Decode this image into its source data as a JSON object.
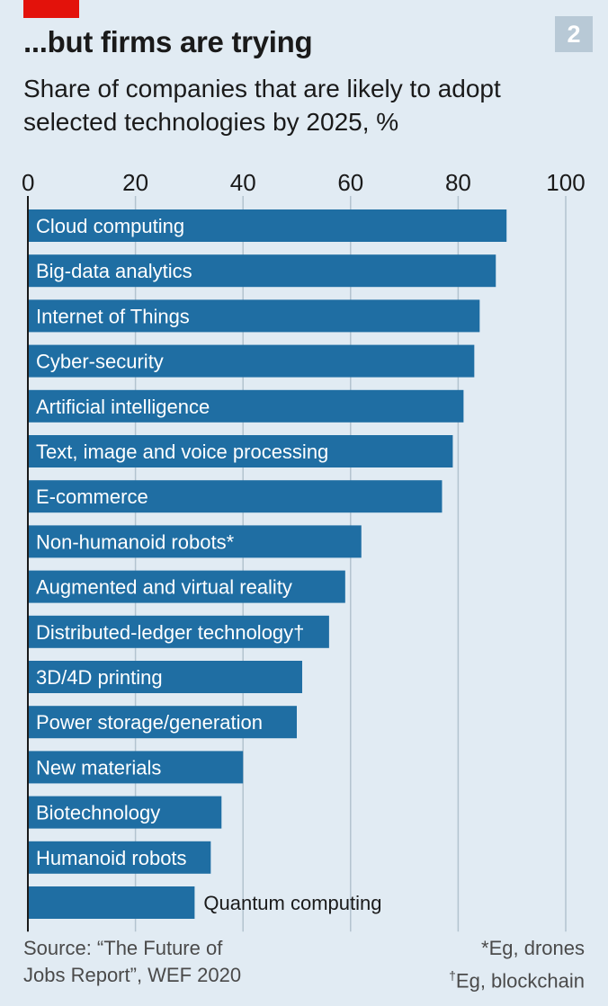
{
  "header": {
    "title": "...but firms are trying",
    "subtitle": "Share of companies that are likely to adopt selected technologies by 2025, %",
    "badge": "2"
  },
  "chart_data": {
    "type": "bar",
    "orientation": "horizontal",
    "xlim": [
      0,
      100
    ],
    "ticks": [
      0,
      20,
      40,
      60,
      80,
      100
    ],
    "grid": true,
    "color": "#1f6ea3",
    "categories": [
      "Cloud computing",
      "Big-data analytics",
      "Internet of Things",
      "Cyber-security",
      "Artificial intelligence",
      "Text, image and voice processing",
      "E-commerce",
      "Non-humanoid robots*",
      "Augmented and virtual reality",
      "Distributed-ledger technology†",
      "3D/4D printing",
      "Power storage/generation",
      "New materials",
      "Biotechnology",
      "Humanoid robots",
      "Quantum computing"
    ],
    "values": [
      89,
      87,
      84,
      83,
      81,
      79,
      77,
      62,
      59,
      56,
      51,
      50,
      40,
      36,
      34,
      31
    ]
  },
  "footer": {
    "source_line1": "Source: “The Future of",
    "source_line2": "Jobs Report”, WEF 2020",
    "note1": "*Eg, drones",
    "note2_mark": "†",
    "note2_text": "Eg, blockchain"
  },
  "colors": {
    "background": "#e1ebf3",
    "bar": "#1f6ea3",
    "accent_red": "#e3120b",
    "badge": "#b8c9d6"
  }
}
